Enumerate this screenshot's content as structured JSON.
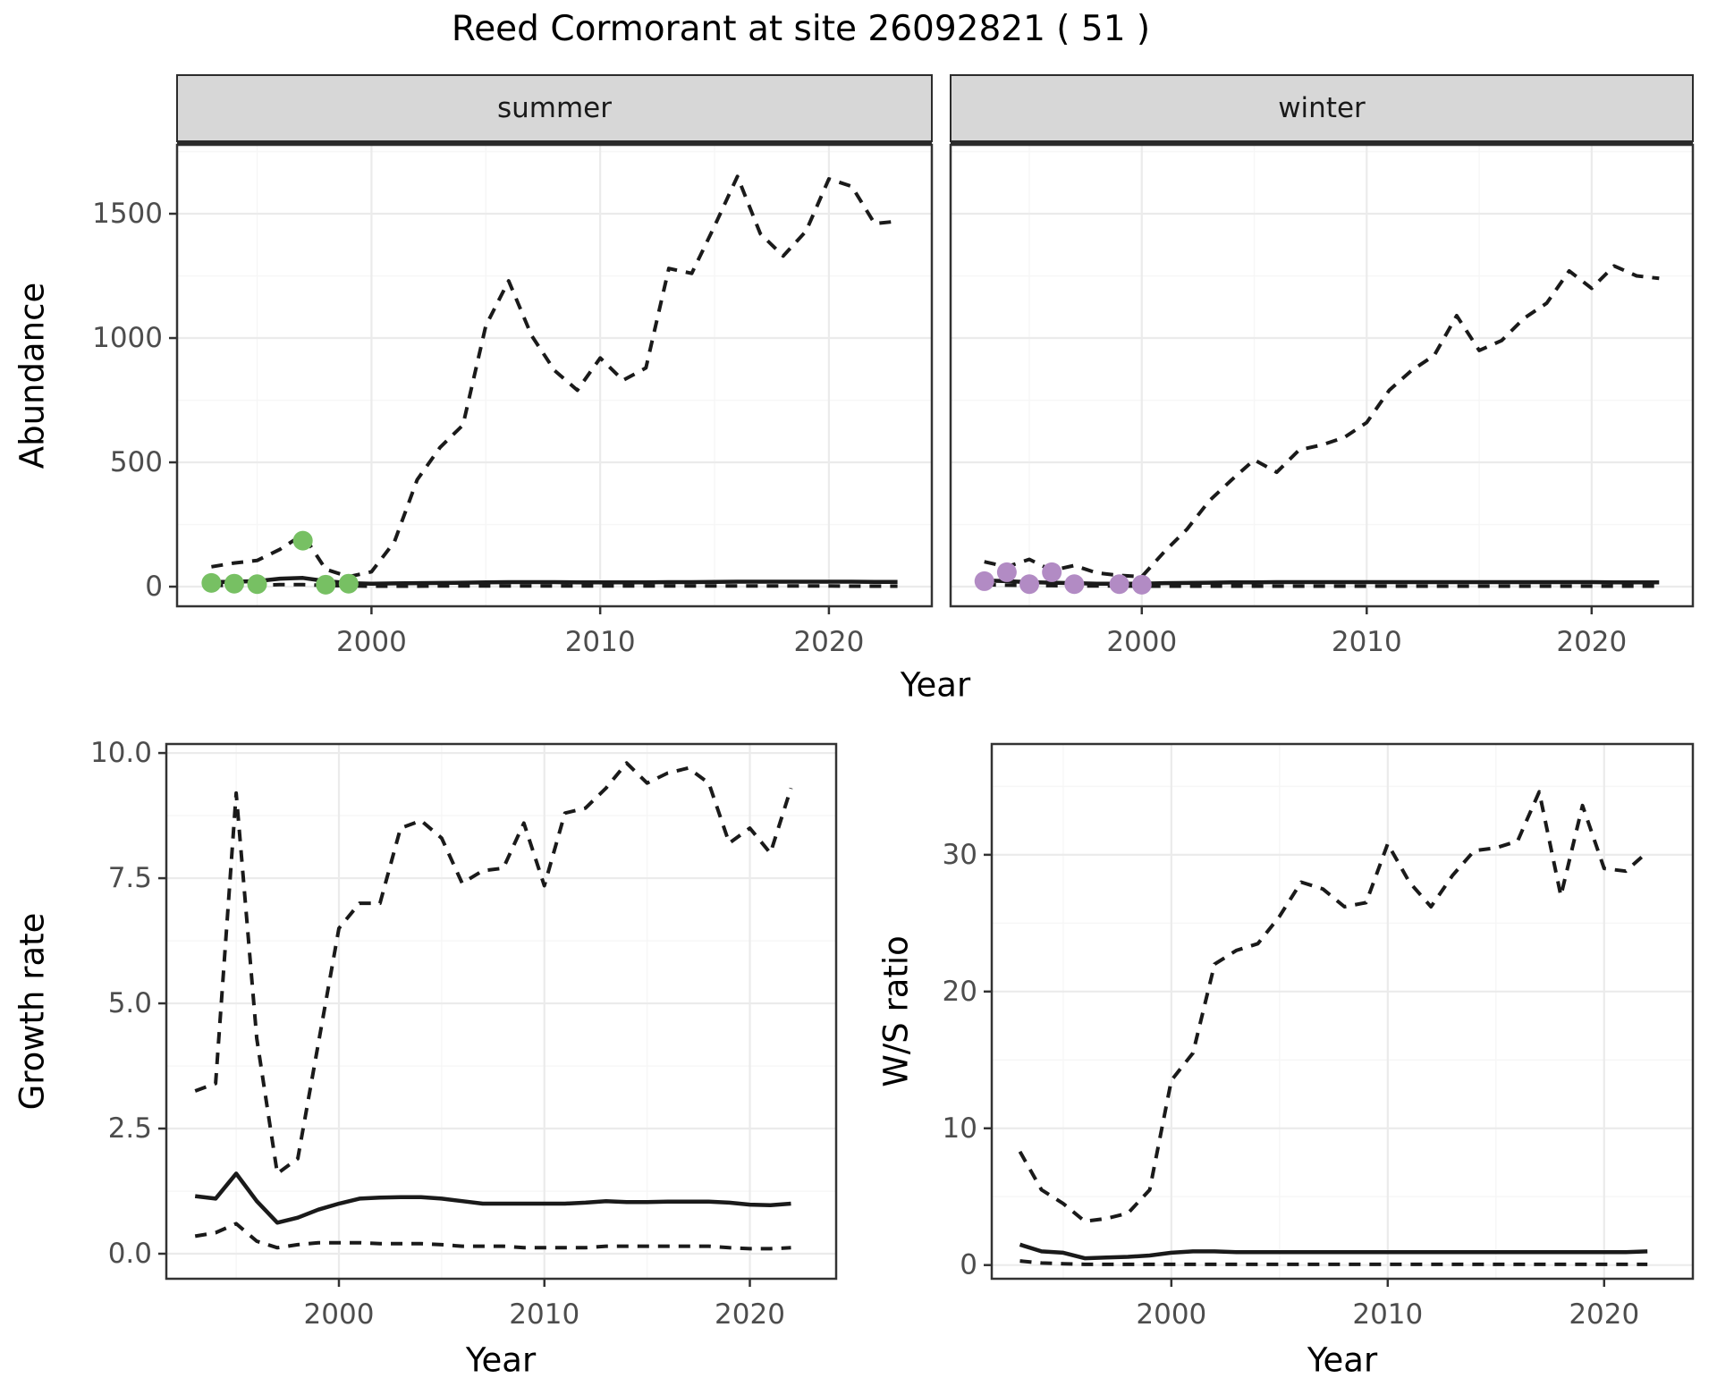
{
  "title": "Reed Cormorant at site 26092821 ( 51 )",
  "colors": {
    "line": "#1a1a1a",
    "grid_major": "#ebebeb",
    "grid_minor": "#f6f6f6",
    "panel_border": "#333333",
    "strip_bg": "#d7d7d7",
    "tick_label": "#4d4d4d",
    "summer_points": "#77c063",
    "winter_points": "#b28bc4"
  },
  "chart_data": [
    {
      "id": "abundance-summer",
      "type": "line",
      "facet": "summer",
      "ylabel": "Abundance",
      "xlabel": "Year",
      "xlim": [
        1991.5,
        2024.5
      ],
      "ylim": [
        -79,
        1777
      ],
      "x_ticks": [
        2000,
        2010,
        2020
      ],
      "x_tick_labels": [
        "2000",
        "2010",
        "2020"
      ],
      "y_ticks": [
        0,
        500,
        1000,
        1500
      ],
      "y_tick_labels": [
        "0",
        "500",
        "1000",
        "1500"
      ],
      "x": [
        1993,
        1994,
        1995,
        1996,
        1997,
        1998,
        1999,
        2000,
        2001,
        2002,
        2003,
        2004,
        2005,
        2006,
        2007,
        2008,
        2009,
        2010,
        2011,
        2012,
        2013,
        2014,
        2015,
        2016,
        2017,
        2018,
        2019,
        2020,
        2021,
        2022,
        2023
      ],
      "series": [
        {
          "name": "upper 95% CI",
          "style": "dashed",
          "values": [
            80,
            95,
            105,
            150,
            210,
            70,
            40,
            60,
            180,
            430,
            560,
            650,
            1050,
            1230,
            1010,
            870,
            790,
            920,
            830,
            880,
            1280,
            1260,
            1450,
            1650,
            1420,
            1330,
            1430,
            1640,
            1610,
            1460,
            1470
          ]
        },
        {
          "name": "modelled mean",
          "style": "solid",
          "values": [
            18,
            20,
            22,
            32,
            35,
            22,
            14,
            12,
            13,
            14,
            15,
            16,
            17,
            18,
            18,
            18,
            17,
            17,
            17,
            17,
            18,
            18,
            19,
            20,
            20,
            20,
            20,
            20,
            20,
            19,
            19
          ]
        },
        {
          "name": "lower 95% CI",
          "style": "dashed",
          "values": [
            5,
            5,
            6,
            8,
            8,
            5,
            3,
            2,
            2,
            2,
            3,
            3,
            3,
            3,
            3,
            3,
            3,
            3,
            3,
            3,
            3,
            3,
            3,
            3,
            3,
            3,
            3,
            3,
            2,
            2,
            2
          ]
        }
      ],
      "points": {
        "name": "observed summer counts",
        "color": "#77c063",
        "data": [
          [
            1993,
            15
          ],
          [
            1994,
            12
          ],
          [
            1995,
            10
          ],
          [
            1997,
            185
          ],
          [
            1998,
            8
          ],
          [
            1999,
            12
          ]
        ]
      }
    },
    {
      "id": "abundance-winter",
      "type": "line",
      "facet": "winter",
      "ylabel": "",
      "xlabel": "",
      "xlim": [
        1991.5,
        2024.5
      ],
      "ylim": [
        -79,
        1777
      ],
      "x_ticks": [
        2000,
        2010,
        2020
      ],
      "x_tick_labels": [
        "2000",
        "2010",
        "2020"
      ],
      "y_ticks": [
        0,
        500,
        1000,
        1500
      ],
      "y_tick_labels": [],
      "x": [
        1993,
        1994,
        1995,
        1996,
        1997,
        1998,
        1999,
        2000,
        2001,
        2002,
        2003,
        2004,
        2005,
        2006,
        2007,
        2008,
        2009,
        2010,
        2011,
        2012,
        2013,
        2014,
        2015,
        2016,
        2017,
        2018,
        2019,
        2020,
        2021,
        2022,
        2023
      ],
      "series": [
        {
          "name": "upper 95% CI",
          "style": "dashed",
          "values": [
            100,
            80,
            110,
            65,
            85,
            55,
            45,
            40,
            140,
            230,
            345,
            430,
            510,
            460,
            550,
            570,
            600,
            660,
            790,
            870,
            930,
            1090,
            950,
            990,
            1080,
            1140,
            1270,
            1200,
            1290,
            1250,
            1240
          ]
        },
        {
          "name": "modelled mean",
          "style": "solid",
          "values": [
            25,
            22,
            18,
            16,
            14,
            12,
            12,
            12,
            14,
            15,
            16,
            17,
            17,
            18,
            18,
            18,
            18,
            18,
            18,
            18,
            18,
            18,
            18,
            18,
            18,
            18,
            18,
            18,
            17,
            17,
            17
          ]
        },
        {
          "name": "lower 95% CI",
          "style": "dashed",
          "values": [
            8,
            6,
            5,
            4,
            3,
            3,
            3,
            2,
            2,
            2,
            2,
            2,
            2,
            2,
            2,
            2,
            2,
            2,
            2,
            2,
            2,
            2,
            2,
            2,
            2,
            2,
            2,
            2,
            2,
            2,
            2
          ]
        }
      ],
      "points": {
        "name": "observed winter counts",
        "color": "#b28bc4",
        "data": [
          [
            1993,
            22
          ],
          [
            1994,
            58
          ],
          [
            1995,
            10
          ],
          [
            1996,
            58
          ],
          [
            1997,
            10
          ],
          [
            1999,
            10
          ],
          [
            2000,
            8
          ]
        ]
      }
    },
    {
      "id": "growth-rate",
      "type": "line",
      "facet": "",
      "ylabel": "Growth rate",
      "xlabel": "Year",
      "xlim": [
        1991.6,
        2024.2
      ],
      "ylim": [
        -0.5,
        10.18
      ],
      "x_ticks": [
        2000,
        2010,
        2020
      ],
      "x_tick_labels": [
        "2000",
        "2010",
        "2020"
      ],
      "y_ticks": [
        0,
        2.5,
        5,
        7.5,
        10
      ],
      "y_tick_labels": [
        "0.0",
        "2.5",
        "5.0",
        "7.5",
        "10.0"
      ],
      "x": [
        1993,
        1994,
        1995,
        1996,
        1997,
        1998,
        1999,
        2000,
        2001,
        2002,
        2003,
        2004,
        2005,
        2006,
        2007,
        2008,
        2009,
        2010,
        2011,
        2012,
        2013,
        2014,
        2015,
        2016,
        2017,
        2018,
        2019,
        2020,
        2021,
        2022
      ],
      "series": [
        {
          "name": "upper 95% CI",
          "style": "dashed",
          "values": [
            3.25,
            3.4,
            9.2,
            4.3,
            1.6,
            1.9,
            4.2,
            6.5,
            7.0,
            7.0,
            8.5,
            8.65,
            8.3,
            7.4,
            7.65,
            7.7,
            8.6,
            7.35,
            8.8,
            8.9,
            9.3,
            9.8,
            9.4,
            9.6,
            9.7,
            9.4,
            8.2,
            8.5,
            8.0,
            9.3
          ]
        },
        {
          "name": "modelled mean",
          "style": "solid",
          "values": [
            1.15,
            1.1,
            1.6,
            1.05,
            0.62,
            0.72,
            0.88,
            1.0,
            1.1,
            1.12,
            1.13,
            1.13,
            1.1,
            1.05,
            1.0,
            1.0,
            1.0,
            1.0,
            1.0,
            1.02,
            1.05,
            1.03,
            1.03,
            1.04,
            1.04,
            1.04,
            1.02,
            0.98,
            0.97,
            1.0
          ]
        },
        {
          "name": "lower 95% CI",
          "style": "dashed",
          "values": [
            0.35,
            0.42,
            0.6,
            0.25,
            0.12,
            0.18,
            0.22,
            0.22,
            0.22,
            0.2,
            0.2,
            0.2,
            0.18,
            0.15,
            0.15,
            0.15,
            0.12,
            0.12,
            0.12,
            0.12,
            0.15,
            0.15,
            0.15,
            0.15,
            0.15,
            0.15,
            0.12,
            0.1,
            0.1,
            0.12
          ]
        }
      ],
      "points": null
    },
    {
      "id": "ws-ratio",
      "type": "line",
      "facet": "",
      "ylabel": "W/S ratio",
      "xlabel": "Year",
      "xlim": [
        1991.7,
        2024.1
      ],
      "ylim": [
        -1,
        38.1
      ],
      "x_ticks": [
        2000,
        2010,
        2020
      ],
      "x_tick_labels": [
        "2000",
        "2010",
        "2020"
      ],
      "y_ticks": [
        0,
        10,
        20,
        30
      ],
      "y_tick_labels": [
        "0",
        "10",
        "20",
        "30"
      ],
      "x": [
        1993,
        1994,
        1995,
        1996,
        1997,
        1998,
        1999,
        2000,
        2001,
        2002,
        2003,
        2004,
        2005,
        2006,
        2007,
        2008,
        2009,
        2010,
        2011,
        2012,
        2013,
        2014,
        2015,
        2016,
        2017,
        2018,
        2019,
        2020,
        2021,
        2022
      ],
      "series": [
        {
          "name": "upper 95% CI",
          "style": "dashed",
          "values": [
            8.3,
            5.5,
            4.5,
            3.2,
            3.4,
            3.8,
            5.5,
            13.5,
            15.5,
            22,
            23,
            23.5,
            25.5,
            28,
            27.5,
            26.2,
            26.5,
            30.8,
            28,
            26.2,
            28.5,
            30.3,
            30.5,
            31,
            34.6,
            27,
            33.6,
            29,
            28.8,
            30.2
          ]
        },
        {
          "name": "modelled mean",
          "style": "solid",
          "values": [
            1.5,
            1.0,
            0.9,
            0.5,
            0.55,
            0.6,
            0.7,
            0.9,
            1.0,
            1.0,
            0.95,
            0.95,
            0.95,
            0.95,
            0.95,
            0.95,
            0.95,
            0.95,
            0.95,
            0.95,
            0.95,
            0.95,
            0.95,
            0.95,
            0.95,
            0.95,
            0.95,
            0.95,
            0.95,
            1.0
          ]
        },
        {
          "name": "lower 95% CI",
          "style": "dashed",
          "values": [
            0.3,
            0.15,
            0.1,
            0.05,
            0.05,
            0.05,
            0.05,
            0.05,
            0.05,
            0.05,
            0.05,
            0.05,
            0.05,
            0.05,
            0.05,
            0.05,
            0.05,
            0.05,
            0.05,
            0.05,
            0.05,
            0.05,
            0.05,
            0.05,
            0.05,
            0.05,
            0.05,
            0.05,
            0.05,
            0.05
          ]
        }
      ],
      "points": null
    }
  ]
}
